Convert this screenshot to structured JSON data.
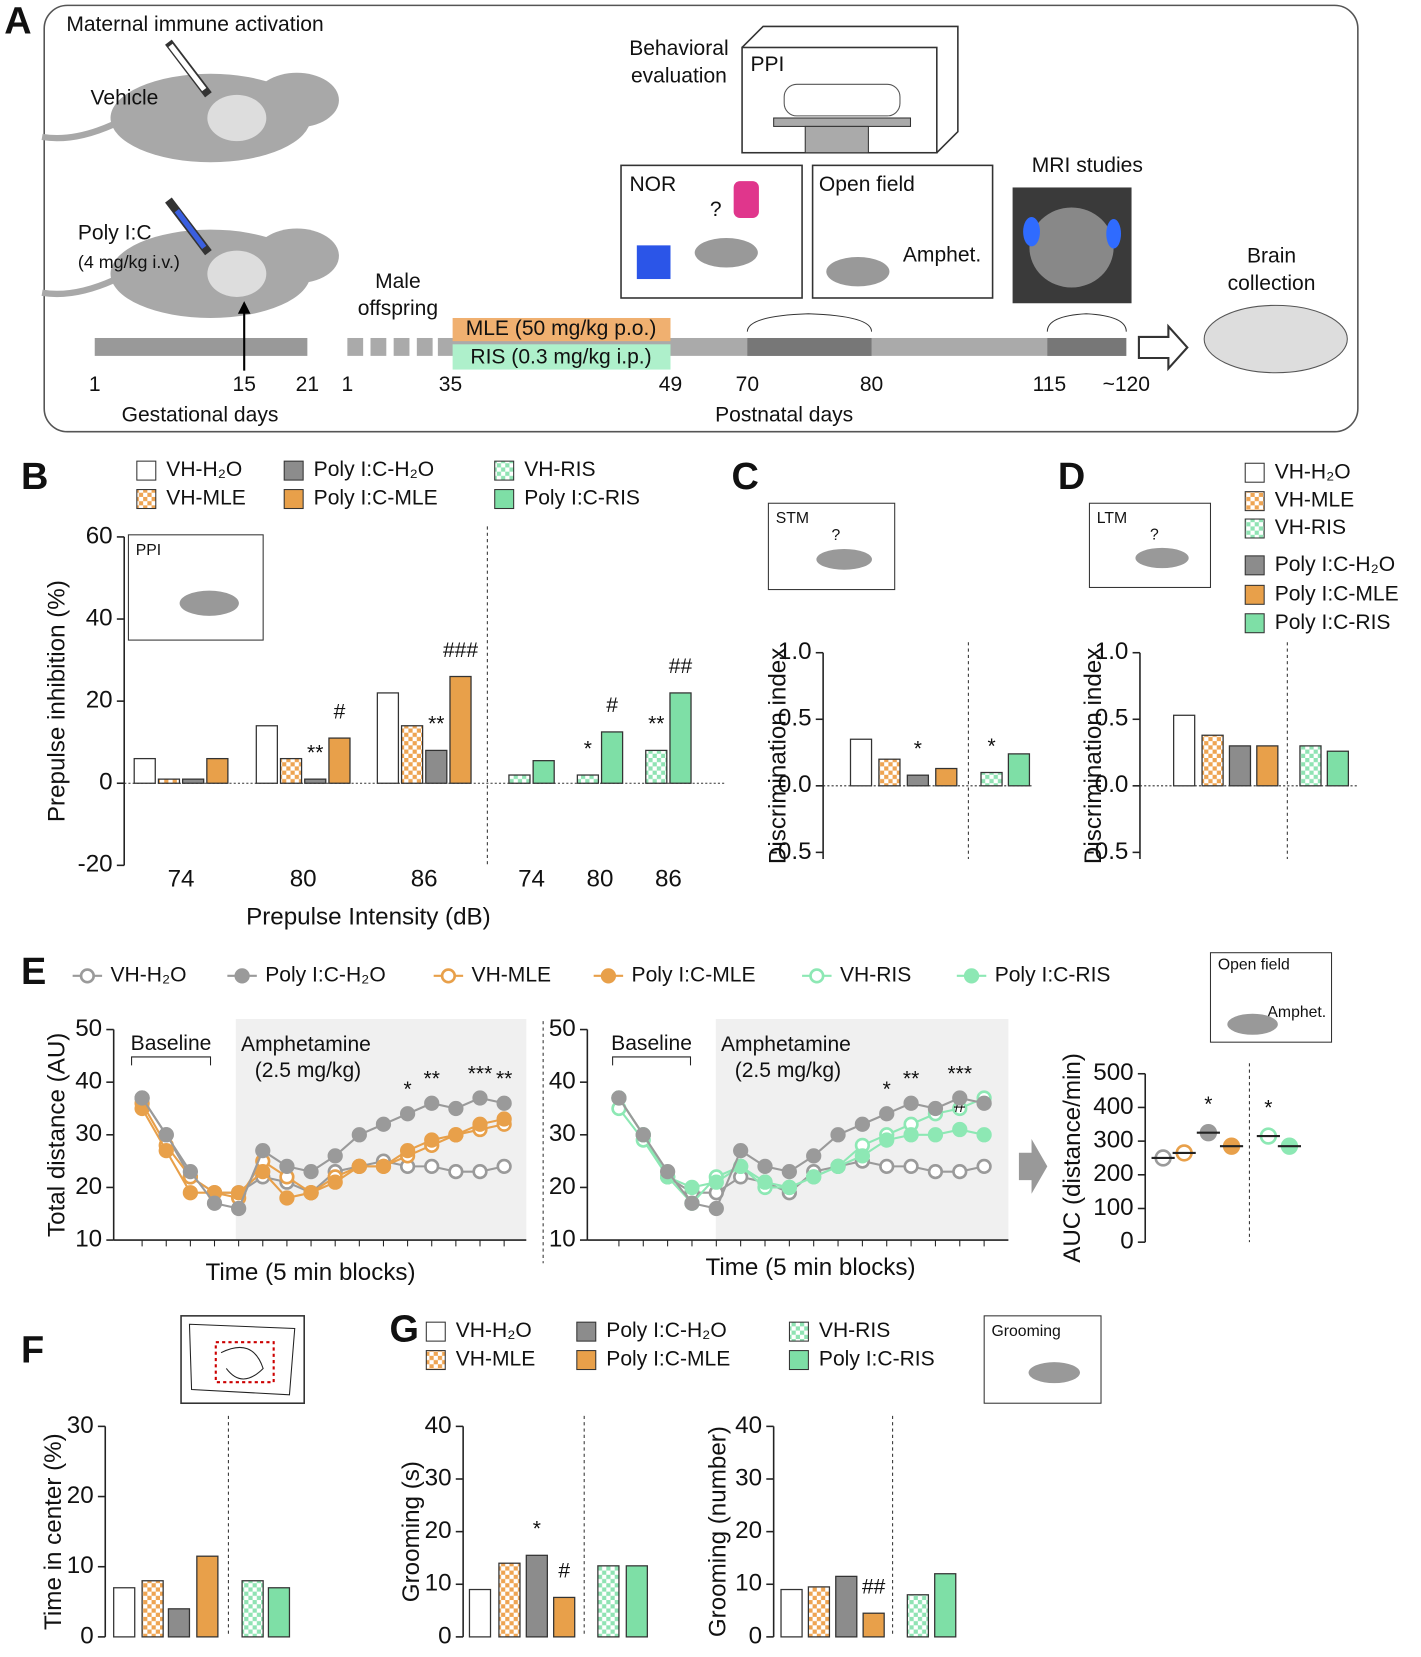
{
  "diagram": {
    "panel": "A",
    "title": "Maternal immune activation",
    "vehicle": "Vehicle",
    "polyic": "Poly I:C",
    "dose": "(4 mg/kg i.v.)",
    "gest_ticks": [
      "1",
      "15",
      "21"
    ],
    "gest_label": "Gestational days",
    "offspring": [
      "Male",
      "offspring"
    ],
    "mle": "MLE (50 mg/kg p.o.)",
    "ris": "RIS (0.3 mg/kg i.p.)",
    "post_ticks": [
      "1",
      "35",
      "49",
      "70",
      "80",
      "115",
      "~120"
    ],
    "post_label": "Postnatal days",
    "behavior": [
      "Behavioral",
      "evaluation"
    ],
    "ppi": "PPI",
    "nor": "NOR",
    "question": "?",
    "open_field": "Open field",
    "amphet": "Amphet.",
    "mri": "MRI studies",
    "brain": [
      "Brain",
      "collection"
    ]
  },
  "chart_data": [
    {
      "panel": "B",
      "type": "bar",
      "ylabel": "Prepulse inhibition (%)",
      "xlabel": "Prepulse Intensity (dB)",
      "inset": "PPI",
      "categories": [
        "74",
        "80",
        "86",
        "74",
        "80",
        "86"
      ],
      "ylim": [
        -20,
        60
      ],
      "yticks": [
        -20,
        0,
        20,
        40,
        60
      ],
      "series": [
        {
          "name": "VH-H₂O",
          "color": "#ffffff",
          "pattern": false,
          "values": [
            6,
            14,
            22,
            null,
            null,
            null
          ]
        },
        {
          "name": "VH-MLE",
          "color": "#eea452",
          "pattern": true,
          "values": [
            1,
            6,
            14,
            null,
            null,
            null
          ]
        },
        {
          "name": "Poly I:C-H₂O",
          "color": "#8c8c8c",
          "pattern": false,
          "values": [
            1,
            1,
            8,
            null,
            null,
            null
          ],
          "annotations": [
            null,
            "**",
            "**",
            null,
            null,
            null
          ]
        },
        {
          "name": "Poly I:C-MLE",
          "color": "#e8a04a",
          "pattern": false,
          "values": [
            6,
            11,
            26,
            null,
            null,
            null
          ],
          "annotations": [
            null,
            "#",
            "###",
            null,
            null,
            null
          ]
        },
        {
          "name": "VH-RIS",
          "color": "#8fe3b3",
          "pattern": true,
          "values": [
            null,
            null,
            null,
            2,
            2,
            8
          ],
          "annotations": [
            null,
            null,
            null,
            null,
            "*",
            "**"
          ]
        },
        {
          "name": "Poly I:C-RIS",
          "color": "#7edfa6",
          "pattern": false,
          "values": [
            null,
            null,
            null,
            5.5,
            12.5,
            22
          ],
          "annotations": [
            null,
            null,
            null,
            null,
            "#",
            "##"
          ]
        }
      ]
    },
    {
      "panel": "C",
      "type": "bar",
      "ylabel": "Discrimination index",
      "inset": "STM",
      "question": "?",
      "ylim": [
        -0.55,
        1.0
      ],
      "yticks": [
        -0.5,
        {
          "value": 0,
          "label": "0.0"
        },
        0.5,
        {
          "value": 1,
          "label": "1.0"
        }
      ],
      "values": [
        0.35,
        0.2,
        0.08,
        0.13,
        0.1,
        0.24
      ],
      "colors": [
        "#ffffff",
        "#eea452",
        "#8c8c8c",
        "#e8a04a",
        "#8fe3b3",
        "#7edfa6"
      ],
      "patterns": [
        false,
        true,
        false,
        false,
        true,
        false
      ],
      "annotations": [
        null,
        null,
        "*",
        null,
        "*",
        null
      ]
    },
    {
      "panel": "D",
      "type": "bar",
      "ylabel": "Discrimination index",
      "inset": "LTM",
      "question": "?",
      "ylim": [
        -0.55,
        1.0
      ],
      "yticks": [
        -0.5,
        {
          "value": 0,
          "label": "0.0"
        },
        0.5,
        {
          "value": 1,
          "label": "1.0"
        }
      ],
      "values": [
        0.53,
        0.38,
        0.3,
        0.3,
        0.3,
        0.26
      ],
      "colors": [
        "#ffffff",
        "#eea452",
        "#8c8c8c",
        "#e8a04a",
        "#8fe3b3",
        "#7edfa6"
      ],
      "patterns": [
        false,
        true,
        false,
        false,
        true,
        false
      ],
      "legend": [
        {
          "name": "VH-H₂O",
          "color": "#ffffff",
          "pattern": false
        },
        {
          "name": "VH-MLE",
          "color": "#eea452",
          "pattern": true
        },
        {
          "name": "VH-RIS",
          "color": "#8fe3b3",
          "pattern": true
        },
        {
          "name": "Poly I:C-H₂O",
          "color": "#8c8c8c",
          "pattern": false
        },
        {
          "name": "Poly I:C-MLE",
          "color": "#e8a04a",
          "pattern": false
        },
        {
          "name": "Poly I:C-RIS",
          "color": "#7edfa6",
          "pattern": false
        }
      ]
    },
    {
      "panel": "E",
      "type": "line",
      "ylabel": "Total distance (AU)",
      "xlabel": "Time (5 min blocks)",
      "baseline": "Baseline",
      "treatment": [
        "Amphetamine",
        "(2.5 mg/kg)"
      ],
      "categories": [
        null,
        null,
        null,
        null,
        null,
        null,
        null,
        null,
        null,
        null,
        null,
        null,
        null,
        null,
        null,
        null
      ],
      "ylim": [
        10,
        50
      ],
      "yticks": [
        10,
        20,
        30,
        40,
        50
      ],
      "legend": [
        {
          "name": "VH-H₂O",
          "color": "#9a9a9a",
          "filled": false
        },
        {
          "name": "Poly I:C-H₂O",
          "color": "#9a9a9a",
          "filled": true
        },
        {
          "name": "VH-MLE",
          "color": "#e8a04a",
          "filled": false
        },
        {
          "name": "Poly I:C-MLE",
          "color": "#e8a04a",
          "filled": true
        },
        {
          "name": "VH-RIS",
          "color": "#8de8b4",
          "filled": false
        },
        {
          "name": "Poly I:C-RIS",
          "color": "#8de8b4",
          "filled": true
        }
      ],
      "series": [
        {
          "color": "#9a9a9a",
          "filled": false,
          "values": [
            37,
            30,
            22,
            19,
            19,
            22,
            21,
            19,
            23,
            24,
            25,
            24,
            24,
            23,
            23,
            24
          ]
        },
        {
          "color": "#e8a04a",
          "filled": false,
          "values": [
            36,
            28,
            22,
            19,
            18,
            25,
            22,
            19,
            22,
            24,
            24,
            26,
            28,
            30,
            31,
            32
          ]
        },
        {
          "color": "#e8a04a",
          "filled": true,
          "values": [
            35,
            27,
            19,
            19,
            19,
            23,
            18,
            19,
            21,
            24,
            24,
            27,
            29,
            30,
            32,
            33
          ]
        },
        {
          "color": "#9a9a9a",
          "filled": true,
          "values": [
            37,
            30,
            23,
            17,
            16,
            27,
            24,
            23,
            26,
            30,
            32,
            34,
            36,
            35,
            37,
            36
          ],
          "annotations": [
            null,
            null,
            null,
            null,
            null,
            null,
            null,
            null,
            null,
            null,
            null,
            "*",
            "**",
            null,
            "***",
            "**"
          ]
        }
      ]
    },
    {
      "type": "line",
      "xlabel": "Time (5 min blocks)",
      "baseline": "Baseline",
      "treatment": [
        "Amphetamine",
        "(2.5 mg/kg)"
      ],
      "categories": [
        null,
        null,
        null,
        null,
        null,
        null,
        null,
        null,
        null,
        null,
        null,
        null,
        null,
        null,
        null,
        null
      ],
      "ylim": [
        10,
        50
      ],
      "yticks": [
        10,
        20,
        30,
        40,
        50
      ],
      "series": [
        {
          "color": "#9a9a9a",
          "filled": false,
          "values": [
            37,
            30,
            22,
            19,
            19,
            22,
            21,
            19,
            23,
            24,
            25,
            24,
            24,
            23,
            23,
            24
          ]
        },
        {
          "color": "#8de8b4",
          "filled": false,
          "values": [
            35,
            29,
            22,
            17,
            22,
            24,
            20,
            20,
            22,
            24,
            28,
            30,
            32,
            34,
            35,
            37
          ]
        },
        {
          "color": "#8de8b4",
          "filled": true,
          "values": [
            37,
            30,
            22,
            20,
            21,
            24,
            21,
            20,
            22,
            24,
            26,
            29,
            30,
            30,
            31,
            30
          ],
          "annotations": [
            null,
            null,
            null,
            null,
            null,
            null,
            null,
            null,
            null,
            null,
            null,
            null,
            null,
            null,
            "#",
            null
          ]
        },
        {
          "color": "#9a9a9a",
          "filled": true,
          "values": [
            37,
            30,
            23,
            17,
            16,
            27,
            24,
            23,
            26,
            30,
            32,
            34,
            36,
            35,
            37,
            36
          ],
          "annotations": [
            null,
            null,
            null,
            null,
            null,
            null,
            null,
            null,
            null,
            null,
            null,
            "*",
            "**",
            null,
            "***",
            null
          ]
        }
      ]
    },
    {
      "type": "dot",
      "ylabel": "AUC (distance/min)",
      "inset": [
        "Open field",
        "Amphet."
      ],
      "ylim": [
        0,
        500
      ],
      "yticks": [
        0,
        100,
        200,
        300,
        400,
        500
      ],
      "values": [
        250,
        265,
        325,
        285,
        315,
        285
      ],
      "colors": [
        "#9a9a9a",
        "#e8a04a",
        "#9a9a9a",
        "#e8a04a",
        "#8de8b4",
        "#8de8b4"
      ],
      "filled": [
        false,
        false,
        true,
        true,
        false,
        true
      ],
      "annotations": [
        null,
        null,
        "*",
        null,
        "*",
        null
      ]
    },
    {
      "panel": "F",
      "type": "bar",
      "ylabel": "Time in center (%)",
      "ylim": [
        0,
        30
      ],
      "yticks": [
        0,
        10,
        20,
        30
      ],
      "values": [
        7,
        8,
        4,
        11.5,
        8,
        7
      ],
      "colors": [
        "#ffffff",
        "#eea452",
        "#8c8c8c",
        "#e8a04a",
        "#8fe3b3",
        "#7edfa6"
      ],
      "patterns": [
        false,
        true,
        false,
        false,
        true,
        false
      ]
    },
    {
      "panel": "G",
      "type": "bar",
      "ylabel": "Grooming (s)",
      "inset": "Grooming",
      "ylim": [
        0,
        40
      ],
      "yticks": [
        0,
        10,
        20,
        30,
        40
      ],
      "values": [
        9,
        14,
        15.5,
        7.5,
        13.5,
        13.5
      ],
      "colors": [
        "#ffffff",
        "#eea452",
        "#8c8c8c",
        "#e8a04a",
        "#8fe3b3",
        "#7edfa6"
      ],
      "patterns": [
        false,
        true,
        false,
        false,
        true,
        false
      ],
      "annotations": [
        null,
        null,
        "*",
        "#",
        null,
        null
      ],
      "legend": [
        {
          "name": "VH-H₂O",
          "color": "#ffffff",
          "pattern": false
        },
        {
          "name": "VH-MLE",
          "color": "#eea452",
          "pattern": true
        },
        {
          "name": "Poly I:C-H₂O",
          "color": "#8c8c8c",
          "pattern": false
        },
        {
          "name": "Poly I:C-MLE",
          "color": "#e8a04a",
          "pattern": false
        },
        {
          "name": "VH-RIS",
          "color": "#8fe3b3",
          "pattern": true
        },
        {
          "name": "Poly I:C-RIS",
          "color": "#7edfa6",
          "pattern": false
        }
      ]
    },
    {
      "type": "bar",
      "ylabel": "Grooming (number)",
      "ylim": [
        0,
        40
      ],
      "yticks": [
        0,
        10,
        20,
        30,
        40
      ],
      "values": [
        9,
        9.5,
        11.5,
        4.5,
        8,
        12
      ],
      "colors": [
        "#ffffff",
        "#eea452",
        "#8c8c8c",
        "#e8a04a",
        "#8fe3b3",
        "#7edfa6"
      ],
      "patterns": [
        false,
        true,
        false,
        false,
        true,
        false
      ],
      "annotations": [
        null,
        null,
        null,
        "##",
        null,
        null
      ]
    }
  ]
}
